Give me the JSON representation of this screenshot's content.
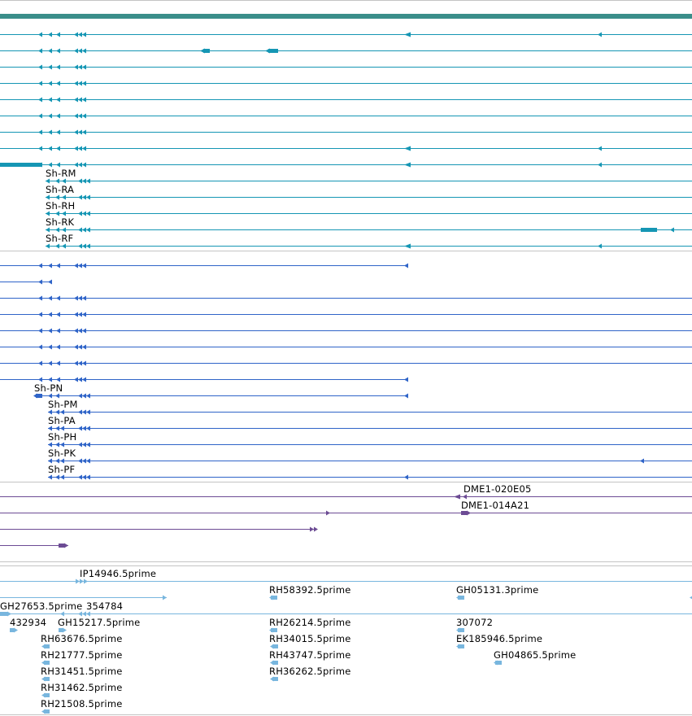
{
  "colors": {
    "ncbi": "#1596b4",
    "flybase": "#2f64c8",
    "clones": "#6c4b94",
    "ests": "#78b6de",
    "topbar": "#3a8e8a",
    "separator": "#c4c4c4"
  },
  "tracks": {
    "gene_models_a": {
      "labels": [
        "Sh-RM",
        "Sh-RA",
        "Sh-RH",
        "Sh-RK",
        "Sh-RF"
      ]
    },
    "gene_models_b": {
      "labels": [
        "Sh-PN",
        "Sh-PM",
        "Sh-PA",
        "Sh-PH",
        "Sh-PK",
        "Sh-PF"
      ]
    },
    "clones": {
      "labels": [
        "DME1-020E05",
        "DME1-014A21"
      ]
    },
    "ests": {
      "labels": [
        "IP14946.5prime",
        "RH58392.5prime",
        "GH05131.3prime",
        "GH27653.5prime",
        "354784",
        "432934",
        "GH15217.5prime",
        "RH26214.5prime",
        "307072",
        "RH63676.5prime",
        "RH34015.5prime",
        "EK185946.5prime",
        "RH21777.5prime",
        "RH43747.5prime",
        "GH04865.5prime",
        "RH31451.5prime",
        "RH36262.5prime",
        "RH31462.5prime",
        "RH21508.5prime"
      ]
    }
  }
}
